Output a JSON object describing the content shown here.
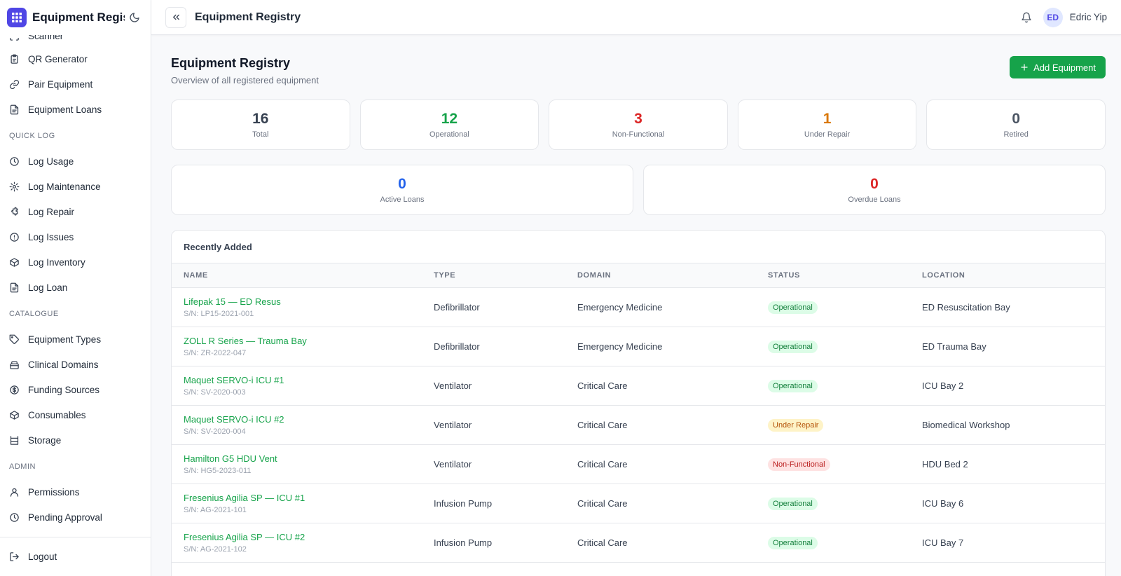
{
  "app": {
    "title": "Equipment Regist",
    "logo_icon": "grid-icon",
    "accent": "#4f46e5"
  },
  "sidebar": {
    "partial_item": "Scanner",
    "items_top": [
      {
        "label": "QR Generator",
        "icon": "clipboard-icon"
      },
      {
        "label": "Pair Equipment",
        "icon": "link-icon"
      },
      {
        "label": "Equipment Loans",
        "icon": "file-icon"
      }
    ],
    "sections": [
      {
        "title": "QUICK LOG",
        "items": [
          {
            "label": "Log Usage",
            "icon": "clock-icon"
          },
          {
            "label": "Log Maintenance",
            "icon": "gear-icon"
          },
          {
            "label": "Log Repair",
            "icon": "puzzle-icon"
          },
          {
            "label": "Log Issues",
            "icon": "alert-circle-icon"
          },
          {
            "label": "Log Inventory",
            "icon": "box-icon"
          },
          {
            "label": "Log Loan",
            "icon": "file-icon"
          }
        ]
      },
      {
        "title": "CATALOGUE",
        "items": [
          {
            "label": "Equipment Types",
            "icon": "tag-icon"
          },
          {
            "label": "Clinical Domains",
            "icon": "archive-icon"
          },
          {
            "label": "Funding Sources",
            "icon": "dollar-circle-icon"
          },
          {
            "label": "Consumables",
            "icon": "box-icon"
          },
          {
            "label": "Storage",
            "icon": "shelf-icon"
          }
        ]
      },
      {
        "title": "ADMIN",
        "items": [
          {
            "label": "Permissions",
            "icon": "user-icon"
          },
          {
            "label": "Pending Approval",
            "icon": "clock-icon"
          }
        ]
      }
    ],
    "logout_label": "Logout"
  },
  "topbar": {
    "title": "Equipment Registry",
    "user_initials": "ED",
    "user_name": "Edric Yip"
  },
  "page": {
    "title": "Equipment Registry",
    "subtitle": "Overview of all registered equipment",
    "add_button_label": "Add Equipment"
  },
  "stats": [
    {
      "value": "16",
      "label": "Total",
      "color": "#374151"
    },
    {
      "value": "12",
      "label": "Operational",
      "color": "#16a34a"
    },
    {
      "value": "3",
      "label": "Non-Functional",
      "color": "#dc2626"
    },
    {
      "value": "1",
      "label": "Under Repair",
      "color": "#d97706"
    },
    {
      "value": "0",
      "label": "Retired",
      "color": "#4b5563"
    }
  ],
  "loan_stats": [
    {
      "value": "0",
      "label": "Active Loans",
      "color": "#2563eb"
    },
    {
      "value": "0",
      "label": "Overdue Loans",
      "color": "#dc2626"
    }
  ],
  "recent": {
    "heading": "Recently Added",
    "columns": [
      "NAME",
      "TYPE",
      "DOMAIN",
      "STATUS",
      "LOCATION"
    ],
    "rows": [
      {
        "name": "Lifepak 15 — ED Resus",
        "sn": "S/N: LP15-2021-001",
        "type": "Defibrillator",
        "domain": "Emergency Medicine",
        "status": "Operational",
        "location": "ED Resuscitation Bay"
      },
      {
        "name": "ZOLL R Series — Trauma Bay",
        "sn": "S/N: ZR-2022-047",
        "type": "Defibrillator",
        "domain": "Emergency Medicine",
        "status": "Operational",
        "location": "ED Trauma Bay"
      },
      {
        "name": "Maquet SERVO-i ICU #1",
        "sn": "S/N: SV-2020-003",
        "type": "Ventilator",
        "domain": "Critical Care",
        "status": "Operational",
        "location": "ICU Bay 2"
      },
      {
        "name": "Maquet SERVO-i ICU #2",
        "sn": "S/N: SV-2020-004",
        "type": "Ventilator",
        "domain": "Critical Care",
        "status": "Under Repair",
        "location": "Biomedical Workshop"
      },
      {
        "name": "Hamilton G5 HDU Vent",
        "sn": "S/N: HG5-2023-011",
        "type": "Ventilator",
        "domain": "Critical Care",
        "status": "Non-Functional",
        "location": "HDU Bed 2"
      },
      {
        "name": "Fresenius Agilia SP — ICU #1",
        "sn": "S/N: AG-2021-101",
        "type": "Infusion Pump",
        "domain": "Critical Care",
        "status": "Operational",
        "location": "ICU Bay 6"
      },
      {
        "name": "Fresenius Agilia SP — ICU #2",
        "sn": "S/N: AG-2021-102",
        "type": "Infusion Pump",
        "domain": "Critical Care",
        "status": "Operational",
        "location": "ICU Bay 7"
      }
    ]
  },
  "status_colors": {
    "Operational": {
      "bg": "#dcfce7",
      "fg": "#15803d"
    },
    "Under Repair": {
      "bg": "#fef3c7",
      "fg": "#b45309"
    },
    "Non-Functional": {
      "bg": "#fee2e2",
      "fg": "#b91c1c"
    }
  }
}
